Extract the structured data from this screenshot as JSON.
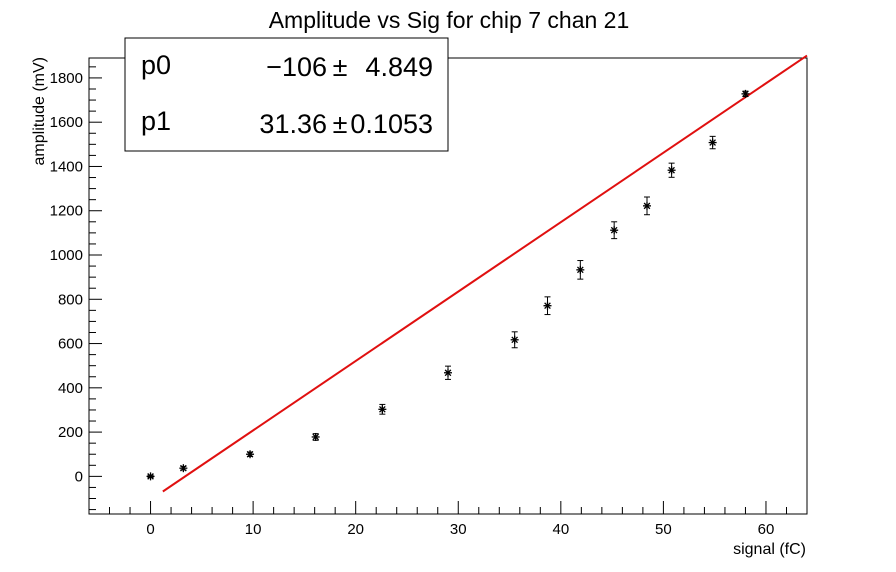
{
  "chart_data": {
    "type": "scatter",
    "title": "Amplitude vs Sig for chip 7 chan 21",
    "xlabel": "signal (fC)",
    "ylabel": "amplitude (mV)",
    "xlim": [
      -6,
      64
    ],
    "ylim": [
      -170,
      1890
    ],
    "x_ticks": [
      0,
      10,
      20,
      30,
      40,
      50,
      60
    ],
    "y_ticks": [
      0,
      200,
      400,
      600,
      800,
      1000,
      1200,
      1400,
      1600,
      1800
    ],
    "grid": false,
    "series": [
      {
        "marker": "asterisk",
        "color": "#000000",
        "points": [
          {
            "x": 0,
            "y": 0,
            "err": 5
          },
          {
            "x": 3.2,
            "y": 37,
            "err": 8
          },
          {
            "x": 9.7,
            "y": 100,
            "err": 10
          },
          {
            "x": 16.1,
            "y": 178,
            "err": 15
          },
          {
            "x": 22.6,
            "y": 303,
            "err": 22
          },
          {
            "x": 29.0,
            "y": 468,
            "err": 30
          },
          {
            "x": 35.5,
            "y": 617,
            "err": 36
          },
          {
            "x": 38.7,
            "y": 771,
            "err": 40
          },
          {
            "x": 41.9,
            "y": 933,
            "err": 42
          },
          {
            "x": 45.2,
            "y": 1112,
            "err": 38
          },
          {
            "x": 48.4,
            "y": 1222,
            "err": 40
          },
          {
            "x": 50.8,
            "y": 1383,
            "err": 32
          },
          {
            "x": 54.8,
            "y": 1508,
            "err": 28
          },
          {
            "x": 58.0,
            "y": 1728,
            "err": 12
          }
        ]
      }
    ],
    "fit": {
      "color": "#e01010",
      "x_range": [
        1.2,
        64
      ],
      "p0": -106,
      "p1": 31.36
    },
    "stats_box": {
      "placement": "top-left",
      "rows": [
        {
          "name": "p0",
          "value": "−106",
          "pm": "±",
          "error": "4.849"
        },
        {
          "name": "p1",
          "value": "31.36",
          "pm": "±",
          "error": "0.1053"
        }
      ]
    }
  }
}
